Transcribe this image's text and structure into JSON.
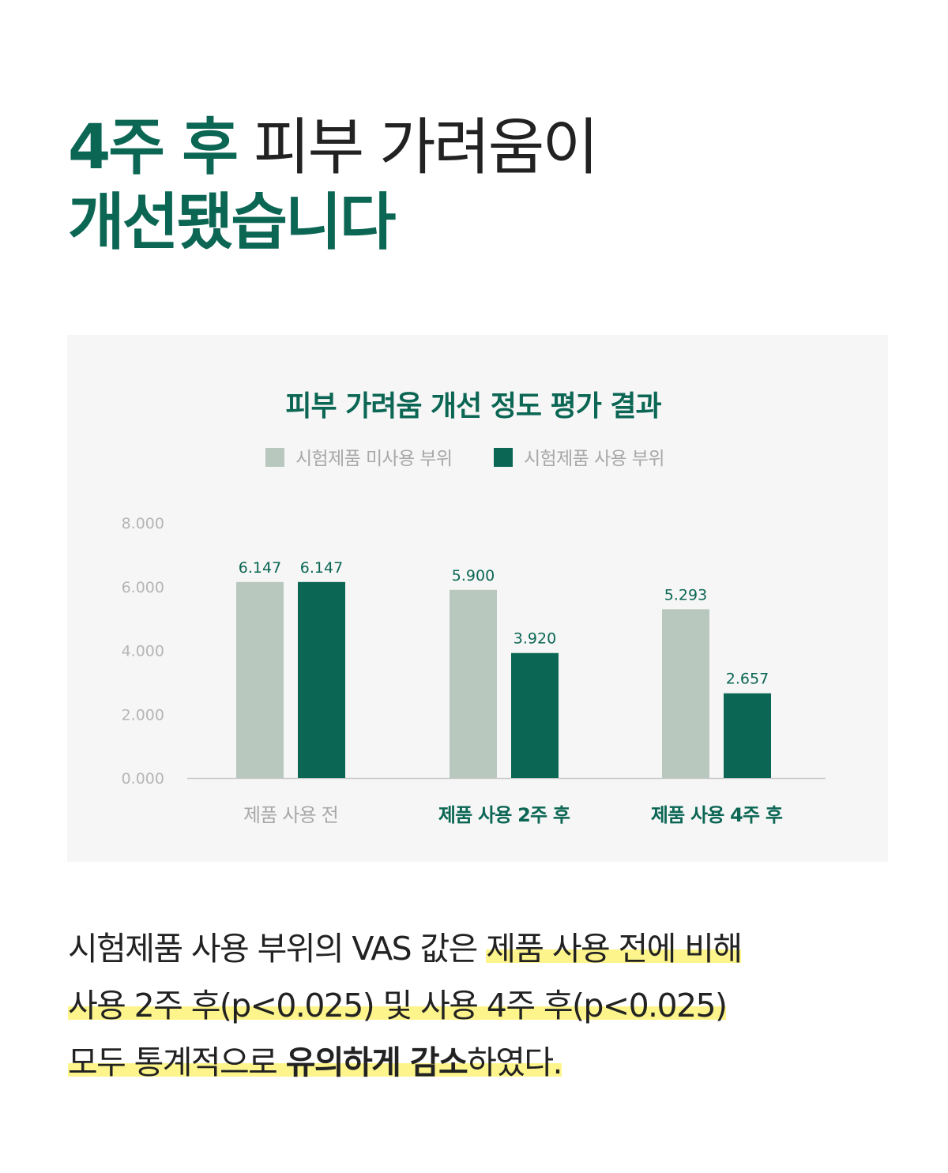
{
  "headline": {
    "line1_accent": "4주 후",
    "line1_rest": " 피부 가려움이",
    "line2_accent": "개선됐습니다"
  },
  "colors": {
    "accent": "#0b6654",
    "series_before": "#b8c8be",
    "series_after": "#0b6654",
    "highlight": "#fdf58b"
  },
  "chart_data": {
    "type": "bar",
    "title": "피부 가려움 개선 정도 평가 결과",
    "legend_position": "top",
    "categories": [
      "제품 사용 전",
      "제품 사용 2주 후",
      "제품 사용 4주 후"
    ],
    "series": [
      {
        "name": "시험제품 미사용 부위",
        "values": [
          6.147,
          5.9,
          5.293
        ],
        "labels": [
          "6.147",
          "5.900",
          "5.293"
        ]
      },
      {
        "name": "시험제품 사용 부위",
        "values": [
          6.147,
          3.92,
          2.657
        ],
        "labels": [
          "6.147",
          "3.920",
          "2.657"
        ]
      }
    ],
    "ylim": [
      0,
      8
    ],
    "y_ticks": [
      "0.000",
      "2.000",
      "4.000",
      "6.000",
      "8.000"
    ],
    "grid": false
  },
  "body": {
    "seg1": "시험제품 사용 부위의 VAS 값은 ",
    "seg2": "제품 사용 전에 비해",
    "seg3": "사용 2주 후(p<0.025) 및 사용 4주 후(p<0.025)",
    "seg4": "모두 통계적으로 ",
    "seg5": "유의하게 감소",
    "seg6": "하였다."
  }
}
